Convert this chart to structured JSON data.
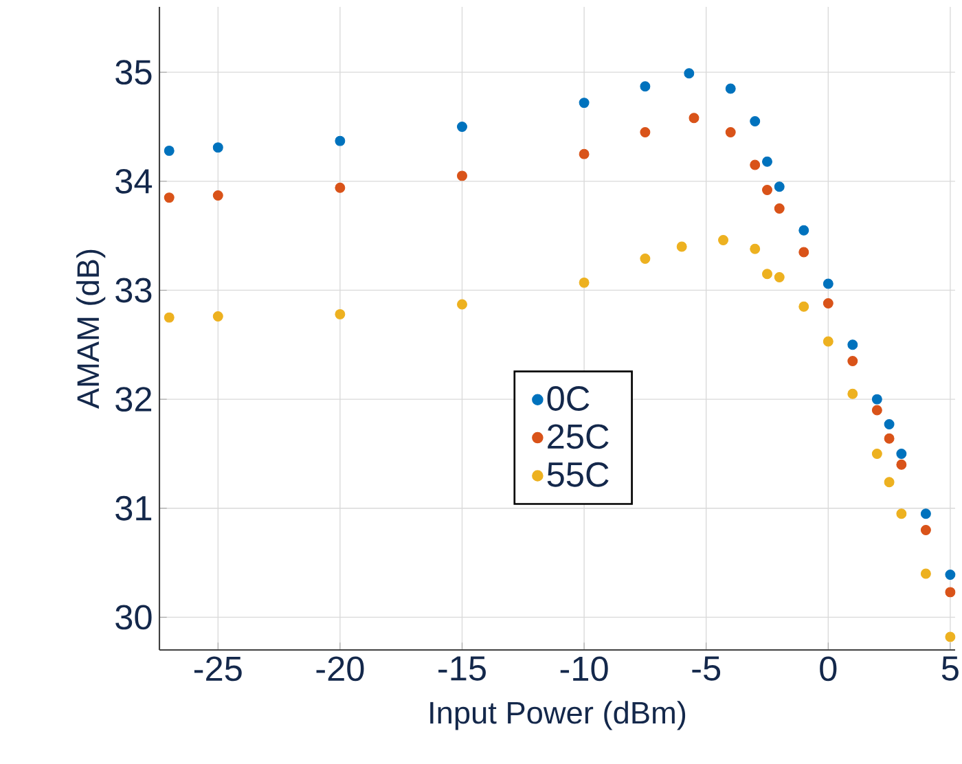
{
  "chart_data": {
    "type": "scatter",
    "xlabel": "Input Power (dBm)",
    "ylabel": "AMAM (dB)",
    "xlim": [
      -27.4,
      5.2
    ],
    "ylim": [
      29.7,
      35.6
    ],
    "xticks": [
      -25,
      -20,
      -15,
      -10,
      -5,
      0,
      5
    ],
    "yticks": [
      30,
      31,
      32,
      33,
      34,
      35
    ],
    "grid": true,
    "legend": "center",
    "marker": "circle",
    "series": [
      {
        "name": "0C",
        "color": "#0072bd",
        "x": [
          -27,
          -25,
          -20,
          -15,
          -10,
          -7.5,
          -5.7,
          -4,
          -3,
          -2.5,
          -2,
          -1,
          0,
          1,
          2,
          2.5,
          3,
          4,
          5
        ],
        "values": [
          34.28,
          34.31,
          34.37,
          34.5,
          34.72,
          34.87,
          34.99,
          34.85,
          34.55,
          34.18,
          33.95,
          33.55,
          33.06,
          32.5,
          32.0,
          31.77,
          31.5,
          30.95,
          30.39
        ]
      },
      {
        "name": "25C",
        "color": "#d95319",
        "x": [
          -27,
          -25,
          -20,
          -15,
          -10,
          -7.5,
          -5.5,
          -4,
          -3,
          -2.5,
          -2,
          -1,
          0,
          1,
          2,
          2.5,
          3,
          4,
          5
        ],
        "values": [
          33.85,
          33.87,
          33.94,
          34.05,
          34.25,
          34.45,
          34.58,
          34.45,
          34.15,
          33.92,
          33.75,
          33.35,
          32.88,
          32.35,
          31.9,
          31.64,
          31.4,
          30.8,
          30.23
        ]
      },
      {
        "name": "55C",
        "color": "#edb120",
        "x": [
          -27,
          -25,
          -20,
          -15,
          -10,
          -7.5,
          -6,
          -4.3,
          -3,
          -2.5,
          -2,
          -1,
          0,
          1,
          2,
          2.5,
          3,
          4,
          5
        ],
        "values": [
          32.75,
          32.76,
          32.78,
          32.87,
          33.07,
          33.29,
          33.4,
          33.46,
          33.38,
          33.15,
          33.12,
          32.85,
          32.53,
          32.05,
          31.5,
          31.24,
          30.95,
          30.4,
          29.82
        ]
      }
    ]
  }
}
